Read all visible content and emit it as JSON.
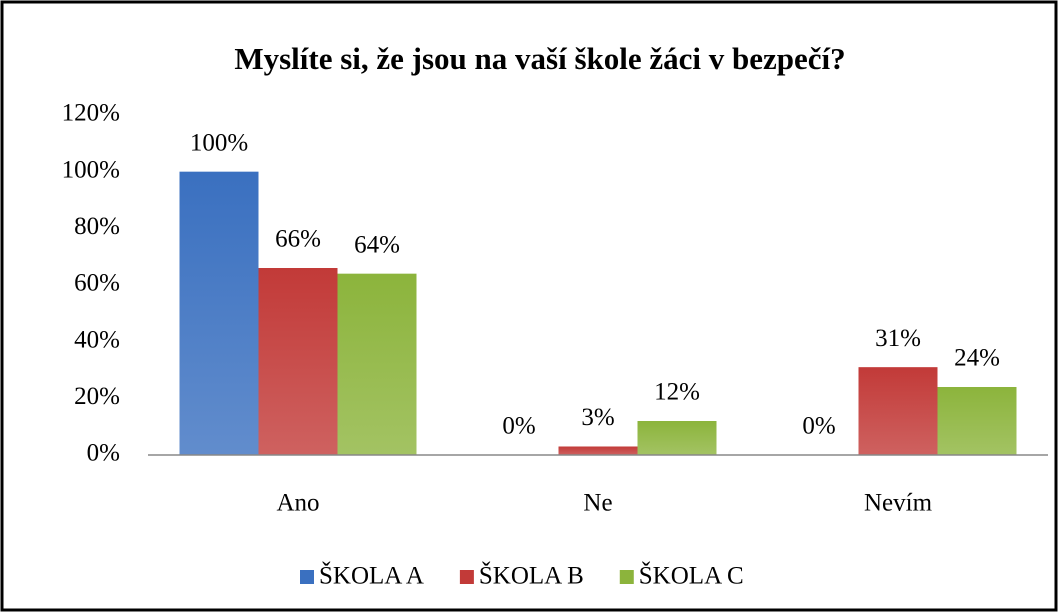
{
  "chart_data": {
    "type": "bar",
    "title": "Myslíte si, že jsou na vaší škole žáci v bezpečí?",
    "categories": [
      "Ano",
      "Ne",
      "Nevím"
    ],
    "series": [
      {
        "name": "ŠKOLA A",
        "color": "#3a70c0",
        "values": [
          100,
          0,
          0
        ],
        "value_labels": [
          "100%",
          "0%",
          "0%"
        ]
      },
      {
        "name": "ŠKOLA B",
        "color": "#c23a38",
        "values": [
          66,
          3,
          31
        ],
        "value_labels": [
          "66%",
          "3%",
          "31%"
        ]
      },
      {
        "name": "ŠKOLA C",
        "color": "#8cb43c",
        "values": [
          64,
          12,
          24
        ],
        "value_labels": [
          "64%",
          "12%",
          "24%"
        ]
      }
    ],
    "ylim": [
      0,
      120
    ],
    "yticks": [
      {
        "value": 0,
        "label": "0%"
      },
      {
        "value": 20,
        "label": "20%"
      },
      {
        "value": 40,
        "label": "40%"
      },
      {
        "value": 60,
        "label": "60%"
      },
      {
        "value": 80,
        "label": "80%"
      },
      {
        "value": 100,
        "label": "100%"
      },
      {
        "value": 120,
        "label": "120%"
      }
    ],
    "grid": false,
    "legend": "bottom"
  }
}
